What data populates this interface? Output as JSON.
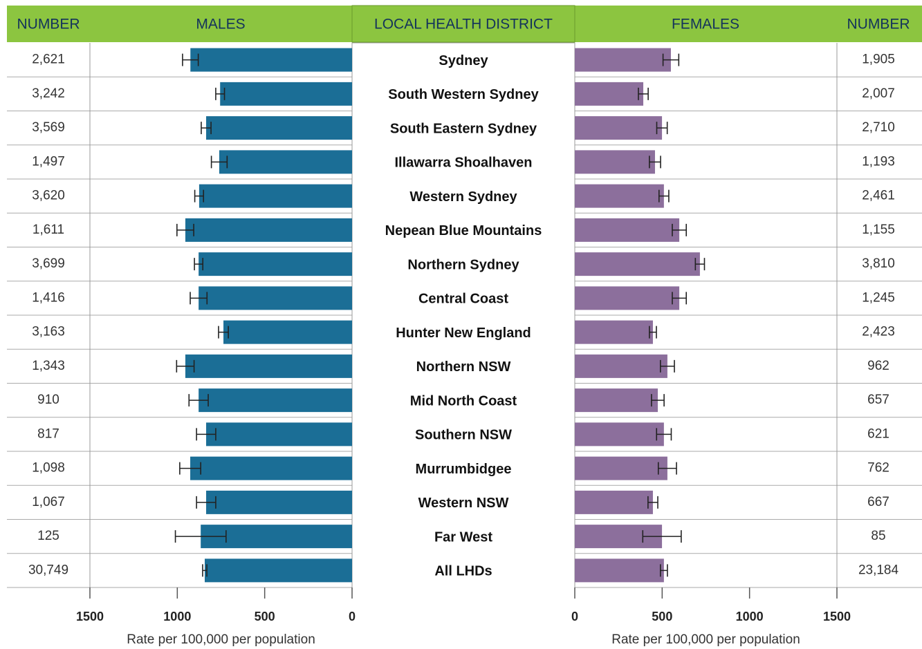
{
  "chart_data": {
    "type": "butterfly",
    "district_header": "LOCAL HEALTH DISTRICT",
    "categories": [
      "Sydney",
      "South Western Sydney",
      "South Eastern Sydney",
      "Illawarra Shoalhaven",
      "Western Sydney",
      "Nepean Blue Mountains",
      "Northern Sydney",
      "Central Coast",
      "Hunter New England",
      "Northern NSW",
      "Mid North Coast",
      "Southern NSW",
      "Murrumbidgee",
      "Western NSW",
      "Far West",
      "All LHDs"
    ],
    "series": [
      {
        "name": "MALES",
        "number_header": "NUMBER",
        "color": "#1b6e96",
        "numbers": [
          "2,621",
          "3,242",
          "3,569",
          "1,497",
          "3,620",
          "1,611",
          "3,699",
          "1,416",
          "3,163",
          "1,343",
          "910",
          "817",
          "1,098",
          "1,067",
          "125",
          "30,749"
        ],
        "values": [
          925,
          755,
          835,
          760,
          875,
          954,
          878,
          878,
          736,
          954,
          878,
          835,
          926,
          835,
          866,
          843
        ],
        "errors": [
          45,
          25,
          28,
          45,
          25,
          48,
          24,
          48,
          28,
          50,
          55,
          55,
          60,
          55,
          145,
          12
        ],
        "xlim": [
          0,
          1500
        ],
        "xticks": [
          0,
          500,
          1000,
          1500
        ],
        "xlabel": "Rate per 100,000 per population"
      },
      {
        "name": "FEMALES",
        "number_header": "NUMBER",
        "color": "#8c6f9c",
        "numbers": [
          "1,905",
          "2,007",
          "2,710",
          "1,193",
          "2,461",
          "1,155",
          "3,810",
          "1,245",
          "2,423",
          "962",
          "657",
          "621",
          "762",
          "667",
          "85",
          "23,184"
        ],
        "values": [
          550,
          392,
          499,
          459,
          510,
          598,
          716,
          598,
          447,
          530,
          475,
          510,
          530,
          447,
          499,
          510
        ],
        "errors": [
          45,
          28,
          30,
          32,
          28,
          40,
          26,
          40,
          20,
          40,
          36,
          42,
          52,
          28,
          110,
          20
        ],
        "xlim": [
          0,
          1500
        ],
        "xticks": [
          0,
          500,
          1000,
          1500
        ],
        "xlabel": "Rate per 100,000 per population"
      }
    ]
  }
}
